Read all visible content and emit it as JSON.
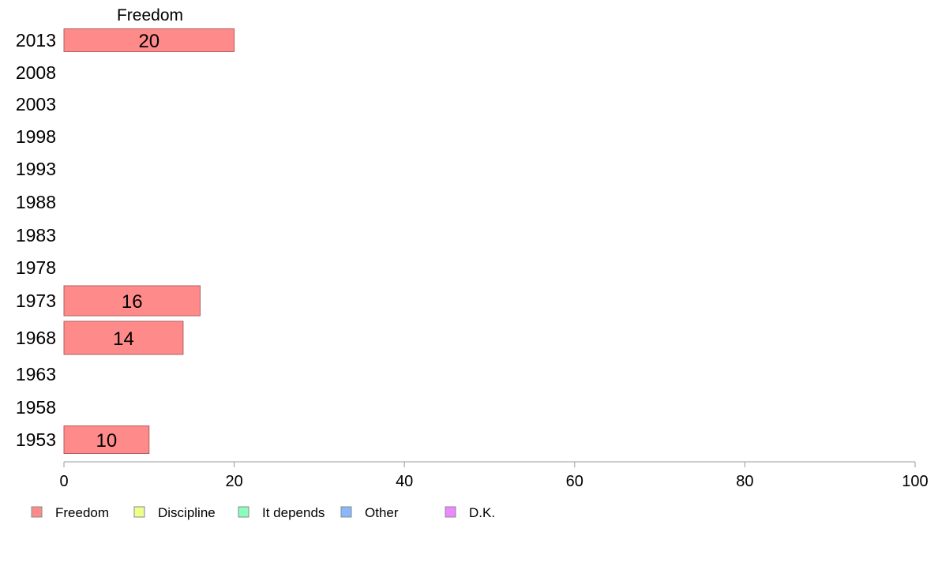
{
  "chart_data": {
    "type": "bar",
    "orientation": "horizontal",
    "stacked": true,
    "panel_title": "Freedom",
    "categories": [
      "2013",
      "2008",
      "2003",
      "1998",
      "1993",
      "1988",
      "1983",
      "1978",
      "1973",
      "1968",
      "1963",
      "1958",
      "1953"
    ],
    "series": [
      {
        "name": "Freedom",
        "color": "#ff8a8a",
        "values": [
          20,
          null,
          null,
          null,
          null,
          null,
          null,
          null,
          16,
          14,
          null,
          null,
          10
        ]
      },
      {
        "name": "Discipline",
        "color": "#eeff8a",
        "values": [
          null,
          null,
          null,
          null,
          null,
          null,
          null,
          null,
          null,
          null,
          null,
          null,
          null
        ]
      },
      {
        "name": "It depends",
        "color": "#8affbb",
        "values": [
          null,
          null,
          null,
          null,
          null,
          null,
          null,
          null,
          null,
          null,
          null,
          null,
          null
        ]
      },
      {
        "name": "Other",
        "color": "#8ab8ff",
        "values": [
          null,
          null,
          null,
          null,
          null,
          null,
          null,
          null,
          null,
          null,
          null,
          null,
          null
        ]
      },
      {
        "name": "D.K.",
        "color": "#ee88ff",
        "values": [
          null,
          null,
          null,
          null,
          null,
          null,
          null,
          null,
          null,
          null,
          null,
          null,
          null
        ]
      }
    ],
    "xlim": [
      0,
      100
    ],
    "xticks": [
      0,
      20,
      40,
      60,
      80,
      100
    ],
    "grid": false,
    "legend_position": "bottom"
  }
}
